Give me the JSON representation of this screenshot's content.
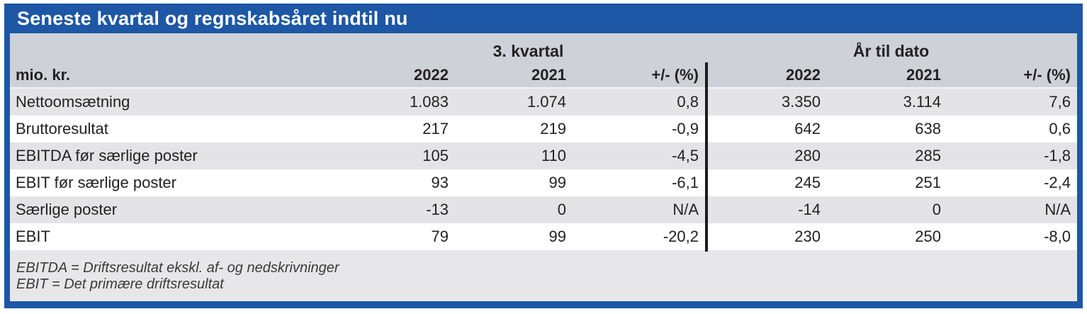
{
  "title": "Seneste kvartal og regnskabsåret indtil nu",
  "table": {
    "unit_label": "mio. kr.",
    "groups": [
      {
        "label": "3. kvartal"
      },
      {
        "label": "År til dato"
      }
    ],
    "column_headers": [
      "2022",
      "2021",
      "+/- (%)",
      "2022",
      "2021",
      "+/- (%)"
    ],
    "rows": [
      {
        "label": "Nettoomsætning",
        "values": [
          "1.083",
          "1.074",
          "0,8",
          "3.350",
          "3.114",
          "7,6"
        ]
      },
      {
        "label": "Bruttoresultat",
        "values": [
          "217",
          "219",
          "-0,9",
          "642",
          "638",
          "0,6"
        ]
      },
      {
        "label": "EBITDA før særlige poster",
        "values": [
          "105",
          "110",
          "-4,5",
          "280",
          "285",
          "-1,8"
        ]
      },
      {
        "label": "EBIT før særlige poster",
        "values": [
          "93",
          "99",
          "-6,1",
          "245",
          "251",
          "-2,4"
        ]
      },
      {
        "label": "Særlige poster",
        "values": [
          "-13",
          "0",
          "N/A",
          "-14",
          "0",
          "N/A"
        ]
      },
      {
        "label": "EBIT",
        "values": [
          "79",
          "99",
          "-20,2",
          "230",
          "250",
          "-8,0"
        ]
      }
    ]
  },
  "footnotes": [
    "EBITDA = Driftsresultat ekskl. af- og nedskrivninger",
    "EBIT = Det primære driftsresultat"
  ],
  "colors": {
    "accent_blue": "#1d57a5",
    "header_band_gray": "#ced2d8",
    "row_stripe_gray": "#e4e4e6",
    "footer_gray": "#e7e7e9",
    "divider_black": "#1c1c1c",
    "text_dark": "#232123"
  }
}
